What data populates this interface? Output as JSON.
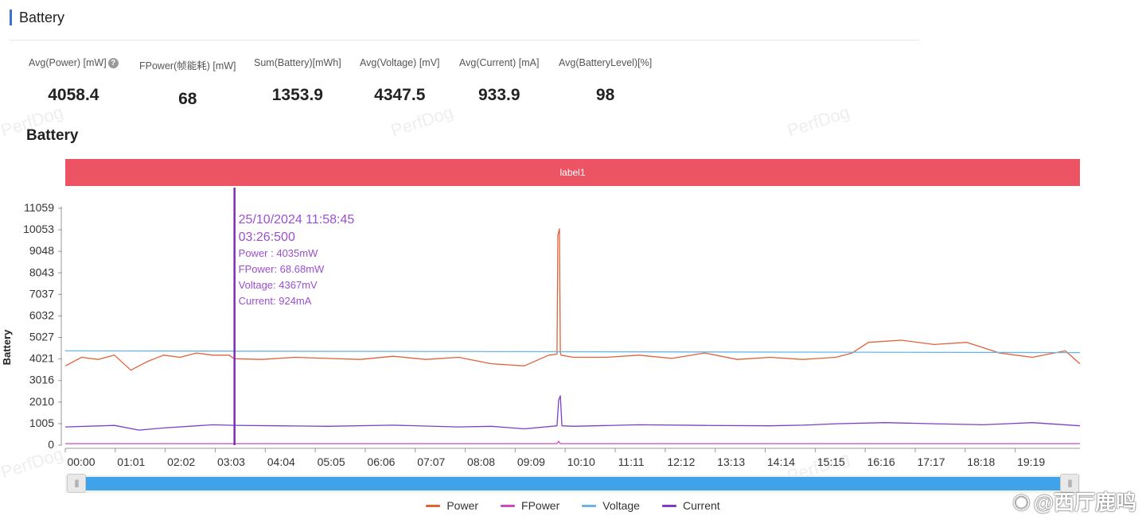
{
  "section": {
    "title": "Battery"
  },
  "metrics": [
    {
      "label": "Avg(Power) [mW]",
      "value": "4058.4",
      "help": true
    },
    {
      "label": "FPower(帧能耗) [mW]",
      "value": "68"
    },
    {
      "label": "Sum(Battery)[mWh]",
      "value": "1353.9"
    },
    {
      "label": "Avg(Voltage) [mV]",
      "value": "4347.5"
    },
    {
      "label": "Avg(Current) [mA]",
      "value": "933.9"
    },
    {
      "label": "Avg(BatteryLevel)[%]",
      "value": "98"
    }
  ],
  "watermark_text": "PerfDog",
  "chart": {
    "title": "Battery",
    "label_bar": "label1"
  },
  "tooltip": {
    "datetime": "25/10/2024 11:58:45",
    "time": "03:26:500",
    "lines": [
      "Power  : 4035mW",
      "FPower: 68.68mW",
      "Voltage: 4367mV",
      "Current: 924mA"
    ]
  },
  "chart_data": {
    "type": "line",
    "ylabel": "Battery",
    "y_ticks": [
      0,
      1005,
      2010,
      3016,
      4021,
      5027,
      6032,
      7037,
      8043,
      9048,
      10053,
      11059
    ],
    "ylim": [
      0,
      11059
    ],
    "x_ticks": [
      "00:00",
      "01:01",
      "02:02",
      "03:03",
      "04:04",
      "05:05",
      "06:06",
      "07:07",
      "08:08",
      "09:09",
      "10:10",
      "11:11",
      "12:12",
      "13:13",
      "14:14",
      "15:15",
      "16:16",
      "17:17",
      "18:18",
      "19:19"
    ],
    "x_range_minutes": [
      0,
      1238
    ],
    "cursor_minutes": 206.5,
    "series": [
      {
        "name": "Power",
        "color": "#e0623a",
        "x": [
          0,
          20,
          40,
          60,
          80,
          100,
          120,
          140,
          160,
          180,
          200,
          206,
          240,
          280,
          320,
          360,
          400,
          440,
          480,
          520,
          560,
          590,
          600,
          601,
          603,
          604,
          605,
          620,
          660,
          700,
          740,
          780,
          820,
          860,
          900,
          940,
          960,
          980,
          1020,
          1060,
          1100,
          1140,
          1180,
          1220,
          1238
        ],
        "y": [
          3700,
          4100,
          4000,
          4200,
          3500,
          3900,
          4200,
          4100,
          4300,
          4200,
          4200,
          4035,
          4000,
          4100,
          4050,
          4000,
          4150,
          4000,
          4100,
          3800,
          3700,
          4200,
          4250,
          9800,
          10100,
          4300,
          4200,
          4100,
          4100,
          4200,
          4050,
          4300,
          4000,
          4100,
          4000,
          4100,
          4300,
          4800,
          4900,
          4700,
          4800,
          4300,
          4100,
          4400,
          3800
        ]
      },
      {
        "name": "FPower",
        "color": "#c84ec0",
        "x": [
          0,
          600,
          602,
          604,
          620,
          1238
        ],
        "y": [
          70,
          70,
          180,
          70,
          70,
          70
        ]
      },
      {
        "name": "Voltage",
        "color": "#6bb3e6",
        "x": [
          0,
          1238
        ],
        "y": [
          4400,
          4320
        ]
      },
      {
        "name": "Current",
        "color": "#7b3fc7",
        "x": [
          0,
          60,
          90,
          120,
          180,
          206,
          260,
          320,
          400,
          480,
          520,
          560,
          600,
          602,
          604,
          606,
          620,
          700,
          780,
          860,
          900,
          940,
          1000,
          1060,
          1120,
          1180,
          1238
        ],
        "y": [
          850,
          920,
          700,
          800,
          950,
          924,
          900,
          880,
          930,
          850,
          880,
          760,
          900,
          2100,
          2300,
          900,
          880,
          950,
          920,
          900,
          930,
          1000,
          1050,
          1000,
          950,
          1050,
          900
        ]
      }
    ]
  },
  "slider": {
    "handle_glyph": "|||"
  },
  "footer": {
    "weibo_mark": "@西厅鹿鸣",
    "weibo_icon": "weibo-icon"
  }
}
